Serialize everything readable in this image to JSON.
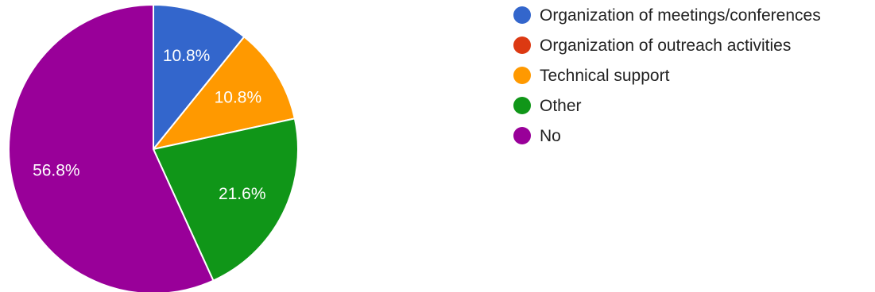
{
  "chart_data": {
    "type": "pie",
    "start_angle_deg": 90,
    "direction": "clockwise",
    "legend_position": "right",
    "slices": [
      {
        "label": "Organization of meetings/conferences",
        "value": 10.8,
        "display": "10.8%",
        "color": "#3366cc"
      },
      {
        "label": "Organization of outreach activities",
        "value": 0,
        "display": "",
        "color": "#dc3912"
      },
      {
        "label": "Technical support",
        "value": 10.8,
        "display": "10.8%",
        "color": "#ff9900"
      },
      {
        "label": "Other",
        "value": 21.6,
        "display": "21.6%",
        "color": "#109618"
      },
      {
        "label": "No",
        "value": 56.8,
        "display": "56.8%",
        "color": "#990099"
      }
    ]
  }
}
